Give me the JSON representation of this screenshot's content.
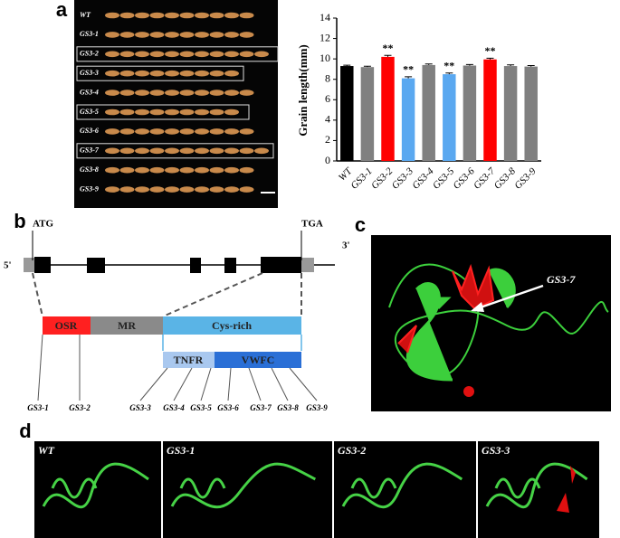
{
  "panel_labels": [
    "a",
    "b",
    "c",
    "d"
  ],
  "panel_a": {
    "row_labels": [
      "WT",
      "GS3-1",
      "GS3-2",
      "GS3-3",
      "GS3-4",
      "GS3-5",
      "GS3-6",
      "GS3-7",
      "GS3-8",
      "GS3-9"
    ]
  },
  "chart_data": {
    "type": "bar",
    "y_label": "Grain length(mm)",
    "categories": [
      "WT",
      "GS3-1",
      "GS3-2",
      "GS3-3",
      "GS3-4",
      "GS3-5",
      "GS3-6",
      "GS3-7",
      "GS3-8",
      "GS3-9"
    ],
    "values": [
      9.3,
      9.2,
      10.2,
      8.1,
      9.4,
      8.5,
      9.35,
      9.95,
      9.3,
      9.25
    ],
    "errors": [
      0.08,
      0.08,
      0.15,
      0.15,
      0.1,
      0.12,
      0.1,
      0.12,
      0.12,
      0.1
    ],
    "colors": [
      "#000000",
      "#808080",
      "#ff0000",
      "#5aa8f0",
      "#808080",
      "#5aa8f0",
      "#808080",
      "#ff0000",
      "#808080",
      "#808080"
    ],
    "significance": [
      null,
      null,
      "**",
      "**",
      null,
      "**",
      null,
      "**",
      null,
      null
    ],
    "ylim": [
      0,
      14
    ],
    "yticks": [
      0,
      2,
      4,
      6,
      8,
      10,
      12,
      14
    ]
  },
  "panel_b": {
    "start_codon": "ATG",
    "stop_codon": "TGA",
    "five_prime": "5'",
    "three_prime": "3'",
    "domains": [
      "OSR",
      "MR",
      "Cys-rich"
    ],
    "subdomains": [
      "TNFR",
      "VWFC"
    ],
    "mutants": [
      "GS3-1",
      "GS3-2",
      "GS3-3",
      "GS3-4",
      "GS3-5",
      "GS3-6",
      "GS3-7",
      "GS3-8",
      "GS3-9"
    ]
  },
  "panel_c": {
    "label": "GS3-7"
  },
  "panel_d": {
    "labels": [
      "WT",
      "GS3-1",
      "GS3-2",
      "GS3-3"
    ]
  }
}
